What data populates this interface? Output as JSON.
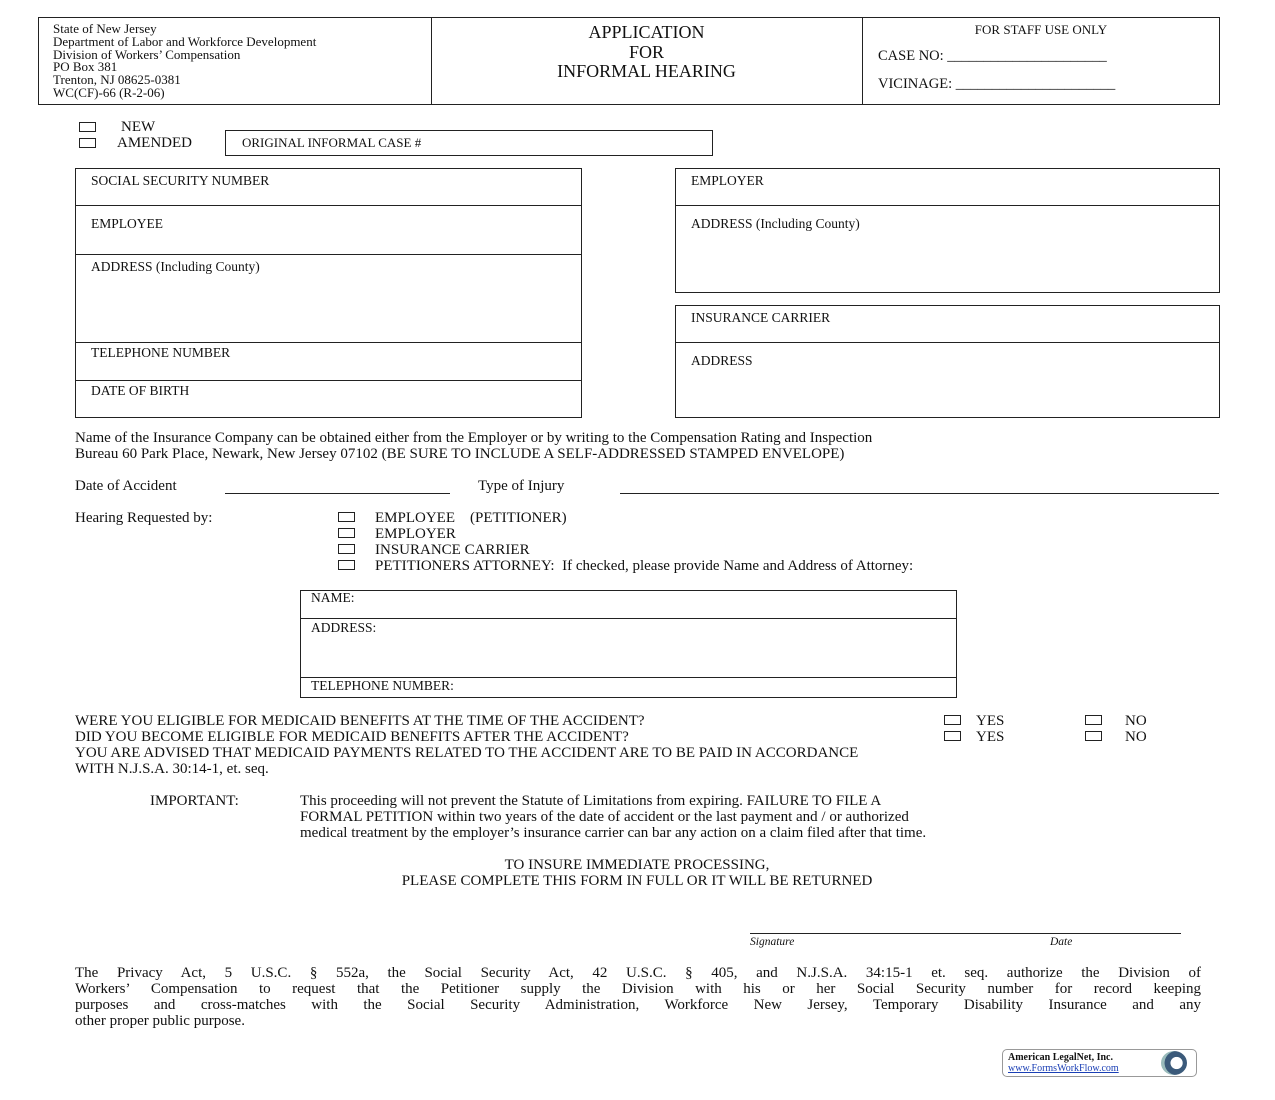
{
  "header": {
    "agency_lines": [
      "State of New Jersey",
      "Department of Labor and Workforce Development",
      "Division of Workers’ Compensation",
      "PO Box 381",
      "Trenton, NJ  08625-0381",
      "WC(CF)-66 (R-2-06)"
    ],
    "title_lines": [
      "APPLICATION",
      "FOR",
      "INFORMAL HEARING"
    ],
    "staff": {
      "heading": "FOR STAFF USE ONLY",
      "case_no": "CASE NO:  ______________________",
      "vicinage": "VICINAGE:  ______________________"
    }
  },
  "type": {
    "new": "NEW",
    "amended": "AMENDED",
    "original_case": "ORIGINAL INFORMAL CASE #"
  },
  "employee_box": [
    "SOCIAL SECURITY NUMBER",
    "EMPLOYEE",
    "ADDRESS (Including County)",
    "TELEPHONE NUMBER",
    "DATE OF BIRTH"
  ],
  "employer_box": [
    "EMPLOYER",
    "ADDRESS (Including County)"
  ],
  "carrier_box": [
    "INSURANCE CARRIER",
    "ADDRESS"
  ],
  "insurance_note": [
    "Name of the Insurance Company can be obtained either from the Employer or by writing to the Compensation Rating and Inspection",
    "Bureau 60 Park Place, Newark, New Jersey  07102  (BE SURE TO INCLUDE A SELF-ADDRESSED STAMPED ENVELOPE)"
  ],
  "accident": {
    "date_label": "Date of Accident",
    "injury_label": "Type of Injury"
  },
  "hearing": {
    "label": "Hearing Requested by:",
    "options": [
      "EMPLOYEE    (PETITIONER)",
      "EMPLOYER",
      "INSURANCE CARRIER",
      "PETITIONERS ATTORNEY:  If checked, please provide Name and Address of Attorney:"
    ]
  },
  "attorney_box": [
    "NAME:",
    "ADDRESS:",
    "TELEPHONE NUMBER:"
  ],
  "medicaid": {
    "q1": "WERE YOU ELIGIBLE FOR MEDICAID BENEFITS AT THE TIME OF THE ACCIDENT?",
    "q2": "DID YOU BECOME ELIGIBLE FOR MEDICAID BENEFITS AFTER THE ACCIDENT?",
    "yes": "YES",
    "no": "NO",
    "advice": [
      "YOU ARE ADVISED THAT MEDICAID PAYMENTS RELATED TO THE ACCIDENT ARE TO BE PAID IN ACCORDANCE",
      "WITH N.J.S.A.  30:14-1, et. seq."
    ]
  },
  "important": {
    "label": "IMPORTANT:",
    "lines": [
      "This proceeding will not prevent the Statute of Limitations from expiring.  FAILURE TO FILE A",
      "FORMAL PETITION within two years of the date of accident or the last payment and / or authorized",
      "medical treatment by the employer’s insurance carrier can bar any action on a claim filed after that time."
    ]
  },
  "processing": [
    "TO INSURE IMMEDIATE PROCESSING,",
    "PLEASE COMPLETE THIS FORM IN FULL OR IT WILL BE RETURNED"
  ],
  "signature": {
    "signature": "Signature",
    "date": "Date"
  },
  "privacy": [
    "The Privacy Act, 5 U.S.C. § 552a, the Social Security Act, 42 U.S.C. § 405, and N.J.S.A. 34:15-1 et. seq. authorize the Division of",
    "Workers’ Compensation to request that the Petitioner supply the Division with his or her Social Security number for record keeping",
    "purposes and cross-matches with the Social Security Administration,  Workforce New Jersey, Temporary Disability Insurance and any",
    "other proper public purpose."
  ],
  "logo": {
    "name": "American LegalNet, Inc.",
    "url": "www.FormsWorkFlow.com"
  }
}
